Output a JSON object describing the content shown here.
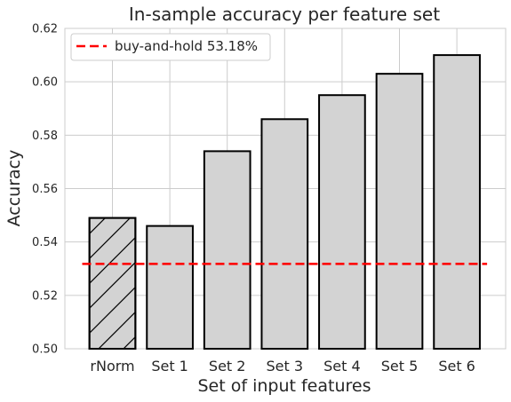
{
  "chart_data": {
    "type": "bar",
    "title": "In-sample accuracy per feature set",
    "xlabel": "Set of input features",
    "ylabel": "Accuracy",
    "categories": [
      "rNorm",
      "Set 1",
      "Set 2",
      "Set 3",
      "Set 4",
      "Set 5",
      "Set 6"
    ],
    "values": [
      0.549,
      0.546,
      0.574,
      0.586,
      0.595,
      0.603,
      0.61
    ],
    "hatched": [
      true,
      false,
      false,
      false,
      false,
      false,
      false
    ],
    "ylim": [
      0.5,
      0.62
    ],
    "yticks": [
      0.5,
      0.52,
      0.54,
      0.56,
      0.58,
      0.6,
      0.62
    ],
    "ytick_labels": [
      "0.50",
      "0.52",
      "0.54",
      "0.56",
      "0.58",
      "0.60",
      "0.62"
    ],
    "baseline": {
      "value": 0.5318,
      "label": "buy-and-hold 53.18%",
      "color": "#ff0000",
      "style": "dashed"
    },
    "bar_color": "#d3d3d3",
    "edge_color": "#000000",
    "grid": true,
    "legend_position": "top-left"
  }
}
